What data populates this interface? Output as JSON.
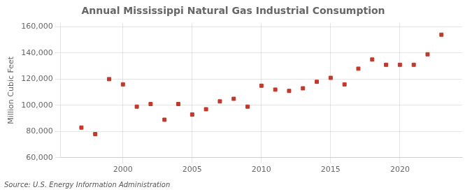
{
  "chart_data": {
    "type": "scatter",
    "title": "Annual Mississippi Natural Gas Industrial Consumption",
    "ylabel": "Million Cubic Feet",
    "annotations": [
      "Source: U.S. Energy Information Administration"
    ],
    "x": [
      1997,
      1998,
      1999,
      2000,
      2001,
      2002,
      2003,
      2004,
      2005,
      2006,
      2007,
      2008,
      2009,
      2010,
      2011,
      2012,
      2013,
      2014,
      2015,
      2016,
      2017,
      2018,
      2019,
      2020,
      2021,
      2022,
      2023
    ],
    "values": [
      83000,
      78000,
      120000,
      116000,
      99000,
      101000,
      89000,
      101000,
      93000,
      97000,
      103000,
      105000,
      99000,
      115000,
      112000,
      111000,
      113000,
      118000,
      121000,
      116000,
      128000,
      135000,
      131000,
      131000,
      131000,
      139000,
      154000
    ],
    "color": "#c0392b",
    "marker": "square",
    "xlim": [
      1995.5,
      2024.5
    ],
    "xticks": [
      2000,
      2005,
      2010,
      2015,
      2020
    ],
    "ylim": [
      60000,
      163000
    ],
    "yticks": [
      {
        "value": 60000,
        "label": "60,000"
      },
      {
        "value": 80000,
        "label": "80,000"
      },
      {
        "value": 100000,
        "label": "100,000"
      },
      {
        "value": 120000,
        "label": "120,000"
      },
      {
        "value": 140000,
        "label": "140,000"
      },
      {
        "value": 160000,
        "label": "160,000"
      }
    ],
    "grid": true
  }
}
